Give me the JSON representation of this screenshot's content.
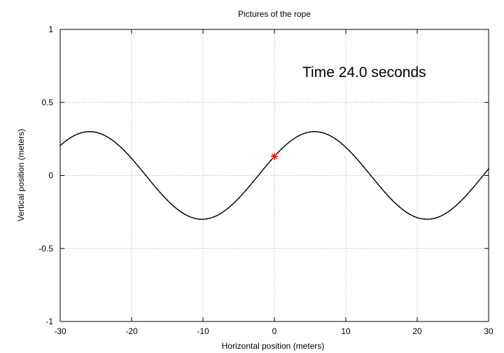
{
  "chart_data": {
    "type": "line",
    "title": "Pictures of the rope",
    "xlabel": "Horizontal position (meters)",
    "ylabel": "Vertical position (meters)",
    "xlim": [
      -30,
      30
    ],
    "ylim": [
      -1,
      1
    ],
    "x_ticks": [
      -30,
      -20,
      -10,
      0,
      10,
      20,
      30
    ],
    "x_tick_labels": [
      "-30",
      "-20",
      "-10",
      "0",
      "10",
      "20",
      "30"
    ],
    "y_ticks": [
      -1,
      -0.5,
      0,
      0.5,
      1
    ],
    "y_tick_labels": [
      "-1",
      "-0.5",
      "0",
      "0.5",
      "1"
    ],
    "grid": true,
    "annotation": "Time 24.0 seconds",
    "series": [
      {
        "x": [
          -30,
          -28,
          -26,
          -24,
          -22,
          -20,
          -18,
          -16,
          -14,
          -12,
          -10,
          -8,
          -6,
          -4,
          -2,
          0,
          2,
          4,
          6,
          8,
          10,
          12,
          14,
          16,
          18,
          20,
          22,
          24,
          26,
          28,
          30
        ],
        "y": [
          0.195,
          0.274,
          0.299,
          0.267,
          0.184,
          0.068,
          -0.057,
          -0.17,
          -0.255,
          -0.297,
          -0.29,
          -0.235,
          -0.142,
          -0.026,
          0.098,
          0.206,
          0.279,
          0.3,
          0.263,
          0.176,
          0.058,
          -0.069,
          -0.18,
          -0.261,
          -0.299,
          -0.287,
          -0.228,
          -0.132,
          -0.012,
          0.11,
          0.214
        ],
        "color": "#000000"
      }
    ],
    "marker": {
      "x": 0,
      "y": 0.13,
      "symbol": "asterisk",
      "color": "#ff0000"
    }
  }
}
